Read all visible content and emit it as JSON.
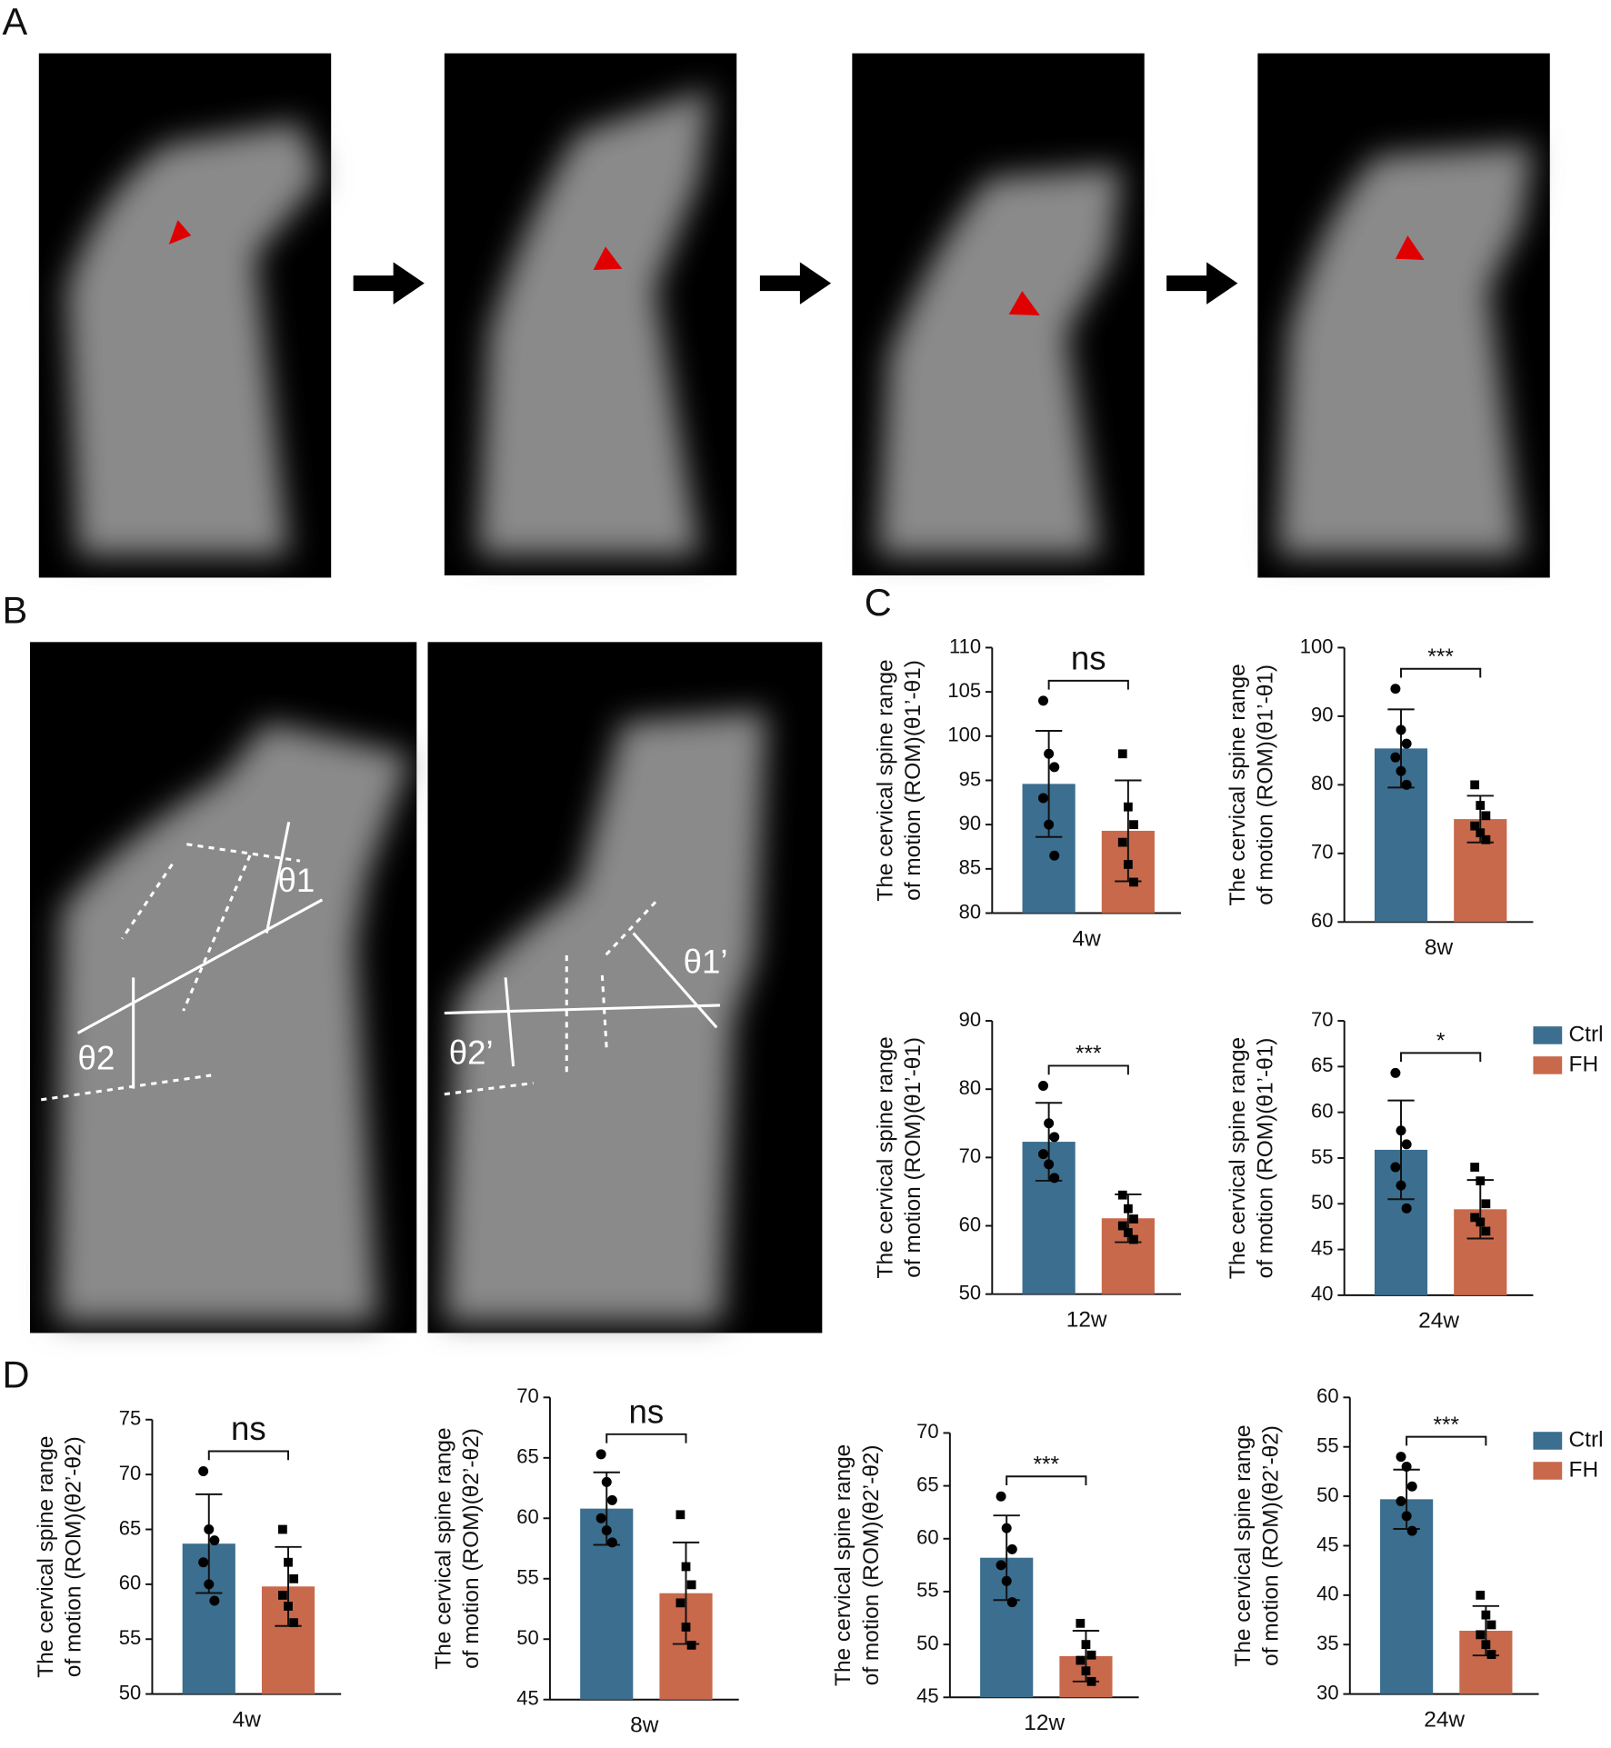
{
  "panel_labels": [
    "A",
    "B",
    "C",
    "D"
  ],
  "xray_angle_labels": [
    "θ1",
    "θ2",
    "θ1’",
    "θ2’"
  ],
  "chart_data": [
    {
      "type": "bar",
      "ylabel": [
        "The cervical spine range",
        "of motion (ROM)(θ1’-θ1)"
      ],
      "categories": [
        "4w"
      ],
      "ylim": [
        80,
        110
      ],
      "yticks": [
        80,
        85,
        90,
        95,
        100,
        105,
        110
      ],
      "significance": "ns",
      "series": [
        {
          "name": "Ctrl",
          "color": "#3b6e8f",
          "marker": "circle",
          "values": [
            94.6
          ],
          "errors": [
            6
          ],
          "points": [
            [
              104,
              98,
              96.5,
              93,
              90,
              86.5
            ]
          ]
        },
        {
          "name": "FH",
          "color": "#c8694c",
          "marker": "square",
          "values": [
            89.3
          ],
          "errors": [
            5.7
          ],
          "points": [
            [
              98,
              92,
              90,
              88,
              85.5,
              83.5
            ]
          ]
        }
      ]
    },
    {
      "type": "bar",
      "ylabel": [
        "The cervical spine range",
        "of motion (ROM)(θ1’-θ1)"
      ],
      "categories": [
        "8w"
      ],
      "ylim": [
        60,
        100
      ],
      "yticks": [
        60,
        70,
        80,
        90,
        100
      ],
      "significance": "***",
      "series": [
        {
          "name": "Ctrl",
          "color": "#3b6e8f",
          "marker": "circle",
          "values": [
            85.3
          ],
          "errors": [
            5.7
          ],
          "points": [
            [
              94,
              88,
              86,
              84,
              82,
              80
            ]
          ]
        },
        {
          "name": "FH",
          "color": "#c8694c",
          "marker": "square",
          "values": [
            75
          ],
          "errors": [
            3.4
          ],
          "points": [
            [
              80,
              77,
              75.5,
              74,
              73,
              72
            ]
          ]
        }
      ]
    },
    {
      "type": "bar",
      "ylabel": [
        "The cervical spine range",
        "of motion (ROM)(θ1’-θ1)"
      ],
      "categories": [
        "12w"
      ],
      "ylim": [
        50,
        90
      ],
      "yticks": [
        50,
        60,
        70,
        80,
        90
      ],
      "significance": "***",
      "series": [
        {
          "name": "Ctrl",
          "color": "#3b6e8f",
          "marker": "circle",
          "values": [
            72.3
          ],
          "errors": [
            5.7
          ],
          "points": [
            [
              80.5,
              75,
              73,
              70.5,
              69,
              67
            ]
          ]
        },
        {
          "name": "FH",
          "color": "#c8694c",
          "marker": "square",
          "values": [
            61.1
          ],
          "errors": [
            3.5
          ],
          "points": [
            [
              64.5,
              62.5,
              61,
              60,
              59,
              58
            ]
          ]
        }
      ]
    },
    {
      "type": "bar",
      "ylabel": [
        "The cervical spine range",
        "of motion (ROM)(θ1’-θ1)"
      ],
      "categories": [
        "24w"
      ],
      "ylim": [
        40,
        70
      ],
      "yticks": [
        40,
        45,
        50,
        55,
        60,
        65,
        70
      ],
      "significance": "*",
      "legend": true,
      "series": [
        {
          "name": "Ctrl",
          "color": "#3b6e8f",
          "marker": "circle",
          "values": [
            55.9
          ],
          "errors": [
            5.4
          ],
          "points": [
            [
              64.3,
              58,
              56.5,
              54,
              52,
              49.5
            ]
          ]
        },
        {
          "name": "FH",
          "color": "#c8694c",
          "marker": "square",
          "values": [
            49.4
          ],
          "errors": [
            3.2
          ],
          "points": [
            [
              54,
              52.5,
              50,
              48.5,
              48,
              47
            ]
          ]
        }
      ]
    },
    {
      "type": "bar",
      "ylabel": [
        "The cervical spine range",
        "of motion (ROM)(θ2’-θ2)"
      ],
      "categories": [
        "4w"
      ],
      "ylim": [
        50,
        75
      ],
      "yticks": [
        50,
        55,
        60,
        65,
        70,
        75
      ],
      "significance": "ns",
      "series": [
        {
          "name": "Ctrl",
          "color": "#3b6e8f",
          "marker": "circle",
          "values": [
            63.7
          ],
          "errors": [
            4.5
          ],
          "points": [
            [
              70.3,
              65,
              64,
              62,
              60,
              58.5
            ]
          ]
        },
        {
          "name": "FH",
          "color": "#c8694c",
          "marker": "square",
          "values": [
            59.8
          ],
          "errors": [
            3.6
          ],
          "points": [
            [
              65,
              62,
              60.5,
              59,
              58,
              56.5
            ]
          ]
        }
      ]
    },
    {
      "type": "bar",
      "ylabel": [
        "The cervical spine range",
        "of motion (ROM)(θ2’-θ2)"
      ],
      "categories": [
        "8w"
      ],
      "ylim": [
        45,
        70
      ],
      "yticks": [
        45,
        50,
        55,
        60,
        65,
        70
      ],
      "significance": "ns",
      "series": [
        {
          "name": "Ctrl",
          "color": "#3b6e8f",
          "marker": "circle",
          "values": [
            60.8
          ],
          "errors": [
            3
          ],
          "points": [
            [
              65.3,
              63,
              61.5,
              60,
              59,
              58
            ]
          ]
        },
        {
          "name": "FH",
          "color": "#c8694c",
          "marker": "square",
          "values": [
            53.8
          ],
          "errors": [
            4.2
          ],
          "points": [
            [
              60.3,
              56,
              54.5,
              53,
              51,
              49.5
            ]
          ]
        }
      ]
    },
    {
      "type": "bar",
      "ylabel": [
        "The cervical spine range",
        "of motion (ROM)(θ2’-θ2)"
      ],
      "categories": [
        "12w"
      ],
      "ylim": [
        45,
        70
      ],
      "yticks": [
        45,
        50,
        55,
        60,
        65,
        70
      ],
      "significance": "***",
      "series": [
        {
          "name": "Ctrl",
          "color": "#3b6e8f",
          "marker": "circle",
          "values": [
            58.2
          ],
          "errors": [
            4
          ],
          "points": [
            [
              64,
              61,
              59,
              57.5,
              56,
              54
            ]
          ]
        },
        {
          "name": "FH",
          "color": "#c8694c",
          "marker": "square",
          "values": [
            48.9
          ],
          "errors": [
            2.4
          ],
          "points": [
            [
              52,
              50,
              49,
              48.5,
              47.5,
              46.5
            ]
          ]
        }
      ]
    },
    {
      "type": "bar",
      "ylabel": [
        "The cervical spine range",
        "of motion (ROM)(θ2’-θ2)"
      ],
      "categories": [
        "24w"
      ],
      "ylim": [
        30,
        60
      ],
      "yticks": [
        30,
        35,
        40,
        45,
        50,
        55,
        60
      ],
      "significance": "***",
      "legend": true,
      "series": [
        {
          "name": "Ctrl",
          "color": "#3b6e8f",
          "marker": "circle",
          "values": [
            49.7
          ],
          "errors": [
            3
          ],
          "points": [
            [
              54,
              53,
              51,
              49.5,
              48,
              46.5
            ]
          ]
        },
        {
          "name": "FH",
          "color": "#c8694c",
          "marker": "square",
          "values": [
            36.4
          ],
          "errors": [
            2.5
          ],
          "points": [
            [
              40,
              38,
              37,
              36,
              35,
              34
            ]
          ]
        }
      ]
    }
  ]
}
